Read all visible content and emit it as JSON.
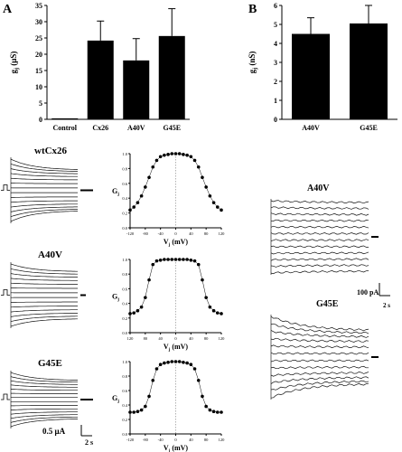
{
  "panel_labels": {
    "a": "A",
    "b": "B"
  },
  "chart_data": [
    {
      "type": "bar",
      "id": "A-top",
      "ylabel_main": "g",
      "ylabel_sub": "j",
      "ylabel_unit": "(μS)",
      "ylim": [
        0,
        35
      ],
      "yticks": [
        "0",
        "5",
        "10",
        "15",
        "20",
        "25",
        "30",
        "35"
      ],
      "categories": [
        "Control",
        "Cx26",
        "A40V",
        "G45E"
      ],
      "values": [
        0.3,
        24.2,
        18.1,
        25.6
      ],
      "errors": [
        0,
        6.0,
        6.7,
        8.4
      ]
    },
    {
      "type": "bar",
      "id": "B-top",
      "ylabel_main": "g",
      "ylabel_sub": "j",
      "ylabel_unit": "(nS)",
      "ylim": [
        0,
        6
      ],
      "yticks": [
        "0",
        "1",
        "2",
        "3",
        "4",
        "5",
        "6"
      ],
      "categories": [
        "A40V",
        "G45E"
      ],
      "values": [
        4.5,
        5.05
      ],
      "errors": [
        0.85,
        0.95
      ]
    },
    {
      "type": "scatter",
      "id": "gj-wt",
      "ylabel_main": "G",
      "ylabel_sub": "j",
      "xlabel_main": "V",
      "xlabel_sub": "j",
      "xlabel_unit": "(mV)",
      "xlim": [
        -120,
        120
      ],
      "ylim": [
        0,
        1
      ],
      "xticks": [
        "-120",
        "-80",
        "-40",
        "0",
        "40",
        "80",
        "120"
      ],
      "yticks": [
        "0.0",
        "0.2",
        "0.4",
        "0.6",
        "0.8",
        "1.0"
      ],
      "x": [
        -120,
        -110,
        -100,
        -90,
        -80,
        -70,
        -60,
        -50,
        -40,
        -30,
        -20,
        -10,
        0,
        10,
        20,
        30,
        40,
        50,
        60,
        70,
        80,
        90,
        100,
        110,
        120
      ],
      "y": [
        0.24,
        0.28,
        0.34,
        0.43,
        0.55,
        0.68,
        0.82,
        0.91,
        0.96,
        0.98,
        0.99,
        1.0,
        1.0,
        1.0,
        0.99,
        0.98,
        0.96,
        0.91,
        0.82,
        0.68,
        0.55,
        0.43,
        0.34,
        0.28,
        0.24
      ]
    },
    {
      "type": "scatter",
      "id": "gj-a40v",
      "ylabel_main": "G",
      "ylabel_sub": "j",
      "xlabel_main": "V",
      "xlabel_sub": "j",
      "xlabel_unit": "(mV)",
      "xlim": [
        -120,
        120
      ],
      "ylim": [
        0,
        1
      ],
      "xticks": [
        "120",
        "80",
        "40",
        "0",
        "40",
        "80",
        "120"
      ],
      "yticks": [
        "0.0",
        "0.2",
        "0.4",
        "0.6",
        "0.8",
        "1.0"
      ],
      "x": [
        -120,
        -110,
        -100,
        -90,
        -80,
        -70,
        -60,
        -50,
        -40,
        -30,
        -20,
        -10,
        0,
        10,
        20,
        30,
        40,
        50,
        60,
        70,
        80,
        90,
        100,
        110,
        120
      ],
      "y": [
        0.26,
        0.27,
        0.3,
        0.35,
        0.48,
        0.72,
        0.93,
        0.98,
        0.99,
        1.0,
        1.0,
        1.0,
        1.0,
        1.0,
        1.0,
        1.0,
        0.99,
        0.98,
        0.93,
        0.72,
        0.48,
        0.35,
        0.3,
        0.27,
        0.26
      ]
    },
    {
      "type": "scatter",
      "id": "gj-g45e",
      "ylabel_main": "G",
      "ylabel_sub": "j",
      "xlabel_main": "V",
      "xlabel_sub": "j",
      "xlabel_unit": "(mV)",
      "xlim": [
        -120,
        120
      ],
      "ylim": [
        0,
        1
      ],
      "xticks": [
        "-120",
        "-80",
        "-40",
        "0",
        "40",
        "80",
        "120"
      ],
      "yticks": [
        "0.0",
        "0.2",
        "0.4",
        "0.6",
        "0.8",
        "1.0"
      ],
      "x": [
        -120,
        -110,
        -100,
        -90,
        -80,
        -70,
        -60,
        -50,
        -40,
        -30,
        -20,
        -10,
        0,
        10,
        20,
        30,
        40,
        50,
        60,
        70,
        80,
        90,
        100,
        110,
        120
      ],
      "y": [
        0.3,
        0.3,
        0.31,
        0.33,
        0.38,
        0.52,
        0.74,
        0.9,
        0.96,
        0.98,
        0.99,
        1.0,
        1.0,
        1.0,
        0.99,
        0.98,
        0.96,
        0.9,
        0.74,
        0.52,
        0.38,
        0.33,
        0.31,
        0.3,
        0.3
      ]
    }
  ],
  "traces": {
    "wt_title": "wtCx26",
    "a40v_title": "A40V",
    "g45e_title": "G45E",
    "b_a40v_title": "A40V",
    "b_g45e_title": "G45E",
    "scale_left_current": "0.5 μA",
    "scale_left_time": "2 s",
    "scale_right_current": "100 pA",
    "scale_right_time": "2 s"
  }
}
